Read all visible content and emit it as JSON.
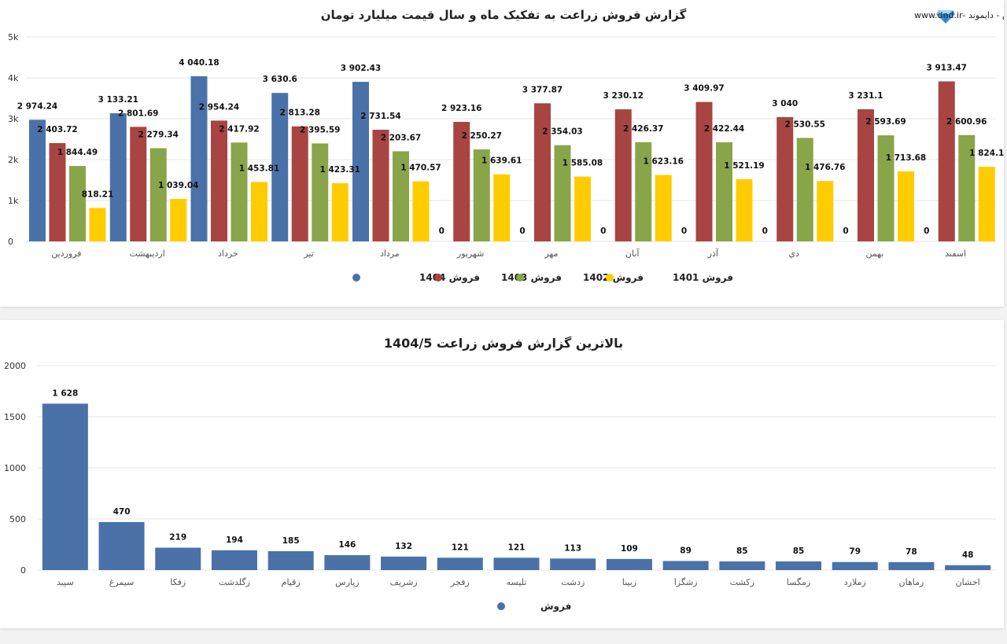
{
  "brand": {
    "text": "نرم افزار تحلیل گر بورس - دایموند -www.dnd.ir",
    "icon": "diamond-logo-icon"
  },
  "colors": {
    "s1404": "#4a72a8",
    "s1403": "#a84441",
    "s1402": "#88a54a",
    "s1401": "#ffcc00",
    "single": "#4a72a8"
  },
  "chart_data": [
    {
      "type": "bar",
      "title": "گزارش فروش زراعت به تفکیک ماه و سال قیمت میلیارد تومان",
      "categories": [
        "فروردین",
        "اردیبهشت",
        "خرداد",
        "تیر",
        "مرداد",
        "شهریور",
        "مهر",
        "آبان",
        "آذر",
        "دي",
        "بهمن",
        "اسفند"
      ],
      "yticks": [
        "0",
        "1k",
        "2k",
        "3k",
        "4k",
        "5k"
      ],
      "ylim": [
        0,
        5000
      ],
      "grid": true,
      "legend_position": "bottom",
      "series": [
        {
          "name": "فروش 1404",
          "color_key": "s1404",
          "values": [
            2974.24,
            3133.21,
            4040.18,
            3630.6,
            3902.43,
            0,
            0,
            0,
            0,
            0,
            0,
            0
          ]
        },
        {
          "name": "فروش 1403",
          "color_key": "s1403",
          "values": [
            2403.72,
            2801.69,
            2954.24,
            2813.28,
            2731.54,
            2923.16,
            3377.87,
            3230.12,
            3409.97,
            3040,
            3231.1,
            3913.47
          ]
        },
        {
          "name": "فروش 1402",
          "color_key": "s1402",
          "values": [
            1844.49,
            2279.34,
            2417.92,
            2395.59,
            2203.67,
            2250.27,
            2354.03,
            2426.37,
            2422.44,
            2530.55,
            2593.69,
            2600.96
          ]
        },
        {
          "name": "فروش 1401",
          "color_key": "s1401",
          "values": [
            818.21,
            1039.04,
            1453.81,
            1423.31,
            1470.57,
            1639.61,
            1585.08,
            1623.16,
            1521.19,
            1476.76,
            1713.68,
            1824.1
          ]
        }
      ],
      "labels": [
        [
          "2 974.24",
          "3 133.21",
          "4 040.18",
          "3 630.6",
          "3 902.43",
          "0",
          "0",
          "0",
          "0",
          "0",
          "0",
          "0"
        ],
        [
          "2 403.72",
          "2 801.69",
          "2 954.24",
          "2 813.28",
          "2 731.54",
          "2 923.16",
          "3 377.87",
          "3 230.12",
          "3 409.97",
          "3 040",
          "3 231.1",
          "3 913.47"
        ],
        [
          "1 844.49",
          "2 279.34",
          "2 417.92",
          "2 395.59",
          "2 203.67",
          "2 250.27",
          "2 354.03",
          "2 426.37",
          "2 422.44",
          "2 530.55",
          "2 593.69",
          "2 600.96"
        ],
        [
          "818.21",
          "1 039.04",
          "1 453.81",
          "1 423.31",
          "1 470.57",
          "1 639.61",
          "1 585.08",
          "1 623.16",
          "1 521.19",
          "1 476.76",
          "1 713.68",
          "1 824.1"
        ]
      ]
    },
    {
      "type": "bar",
      "title": "بالاترین گزارش فروش زراعت 1404/5",
      "categories": [
        "سپید",
        "سیمرغ",
        "زفکا",
        "زگلدشت",
        "زقیام",
        "زپارس",
        "زشریف",
        "زفجر",
        "تلیسه",
        "زدشت",
        "زبینا",
        "زشگزا",
        "زکشت",
        "زمگسا",
        "زملارد",
        "زماهان",
        "اخشان"
      ],
      "values": [
        1628,
        470,
        219,
        194,
        185,
        146,
        132,
        121,
        121,
        113,
        109,
        89,
        85,
        85,
        79,
        78,
        48
      ],
      "labels": [
        "1 628",
        "470",
        "219",
        "194",
        "185",
        "146",
        "132",
        "121",
        "121",
        "113",
        "109",
        "89",
        "85",
        "85",
        "79",
        "78",
        "48"
      ],
      "yticks": [
        "0",
        "500",
        "1000",
        "1500",
        "2000"
      ],
      "ylim": [
        0,
        2000
      ],
      "grid": true,
      "legend_position": "bottom",
      "series_name": "فروش"
    }
  ]
}
